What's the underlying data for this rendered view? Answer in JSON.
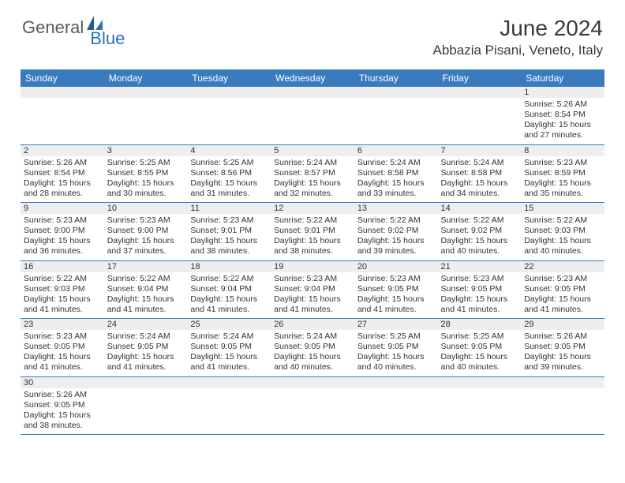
{
  "brand": {
    "part1": "General",
    "part2": "Blue"
  },
  "title": "June 2024",
  "location": "Abbazia Pisani, Veneto, Italy",
  "colors": {
    "header_bg": "#3a7bbf",
    "header_text": "#ffffff",
    "daynum_bg": "#eeeeee",
    "text": "#333333",
    "logo_gray": "#5a5a5a",
    "logo_blue": "#2d6fb3",
    "row_border": "#3a7bbf"
  },
  "day_headers": [
    "Sunday",
    "Monday",
    "Tuesday",
    "Wednesday",
    "Thursday",
    "Friday",
    "Saturday"
  ],
  "weeks": [
    [
      null,
      null,
      null,
      null,
      null,
      null,
      {
        "n": "1",
        "sr": "Sunrise: 5:26 AM",
        "ss": "Sunset: 8:54 PM",
        "d1": "Daylight: 15 hours",
        "d2": "and 27 minutes."
      }
    ],
    [
      {
        "n": "2",
        "sr": "Sunrise: 5:26 AM",
        "ss": "Sunset: 8:54 PM",
        "d1": "Daylight: 15 hours",
        "d2": "and 28 minutes."
      },
      {
        "n": "3",
        "sr": "Sunrise: 5:25 AM",
        "ss": "Sunset: 8:55 PM",
        "d1": "Daylight: 15 hours",
        "d2": "and 30 minutes."
      },
      {
        "n": "4",
        "sr": "Sunrise: 5:25 AM",
        "ss": "Sunset: 8:56 PM",
        "d1": "Daylight: 15 hours",
        "d2": "and 31 minutes."
      },
      {
        "n": "5",
        "sr": "Sunrise: 5:24 AM",
        "ss": "Sunset: 8:57 PM",
        "d1": "Daylight: 15 hours",
        "d2": "and 32 minutes."
      },
      {
        "n": "6",
        "sr": "Sunrise: 5:24 AM",
        "ss": "Sunset: 8:58 PM",
        "d1": "Daylight: 15 hours",
        "d2": "and 33 minutes."
      },
      {
        "n": "7",
        "sr": "Sunrise: 5:24 AM",
        "ss": "Sunset: 8:58 PM",
        "d1": "Daylight: 15 hours",
        "d2": "and 34 minutes."
      },
      {
        "n": "8",
        "sr": "Sunrise: 5:23 AM",
        "ss": "Sunset: 8:59 PM",
        "d1": "Daylight: 15 hours",
        "d2": "and 35 minutes."
      }
    ],
    [
      {
        "n": "9",
        "sr": "Sunrise: 5:23 AM",
        "ss": "Sunset: 9:00 PM",
        "d1": "Daylight: 15 hours",
        "d2": "and 36 minutes."
      },
      {
        "n": "10",
        "sr": "Sunrise: 5:23 AM",
        "ss": "Sunset: 9:00 PM",
        "d1": "Daylight: 15 hours",
        "d2": "and 37 minutes."
      },
      {
        "n": "11",
        "sr": "Sunrise: 5:23 AM",
        "ss": "Sunset: 9:01 PM",
        "d1": "Daylight: 15 hours",
        "d2": "and 38 minutes."
      },
      {
        "n": "12",
        "sr": "Sunrise: 5:22 AM",
        "ss": "Sunset: 9:01 PM",
        "d1": "Daylight: 15 hours",
        "d2": "and 38 minutes."
      },
      {
        "n": "13",
        "sr": "Sunrise: 5:22 AM",
        "ss": "Sunset: 9:02 PM",
        "d1": "Daylight: 15 hours",
        "d2": "and 39 minutes."
      },
      {
        "n": "14",
        "sr": "Sunrise: 5:22 AM",
        "ss": "Sunset: 9:02 PM",
        "d1": "Daylight: 15 hours",
        "d2": "and 40 minutes."
      },
      {
        "n": "15",
        "sr": "Sunrise: 5:22 AM",
        "ss": "Sunset: 9:03 PM",
        "d1": "Daylight: 15 hours",
        "d2": "and 40 minutes."
      }
    ],
    [
      {
        "n": "16",
        "sr": "Sunrise: 5:22 AM",
        "ss": "Sunset: 9:03 PM",
        "d1": "Daylight: 15 hours",
        "d2": "and 41 minutes."
      },
      {
        "n": "17",
        "sr": "Sunrise: 5:22 AM",
        "ss": "Sunset: 9:04 PM",
        "d1": "Daylight: 15 hours",
        "d2": "and 41 minutes."
      },
      {
        "n": "18",
        "sr": "Sunrise: 5:22 AM",
        "ss": "Sunset: 9:04 PM",
        "d1": "Daylight: 15 hours",
        "d2": "and 41 minutes."
      },
      {
        "n": "19",
        "sr": "Sunrise: 5:23 AM",
        "ss": "Sunset: 9:04 PM",
        "d1": "Daylight: 15 hours",
        "d2": "and 41 minutes."
      },
      {
        "n": "20",
        "sr": "Sunrise: 5:23 AM",
        "ss": "Sunset: 9:05 PM",
        "d1": "Daylight: 15 hours",
        "d2": "and 41 minutes."
      },
      {
        "n": "21",
        "sr": "Sunrise: 5:23 AM",
        "ss": "Sunset: 9:05 PM",
        "d1": "Daylight: 15 hours",
        "d2": "and 41 minutes."
      },
      {
        "n": "22",
        "sr": "Sunrise: 5:23 AM",
        "ss": "Sunset: 9:05 PM",
        "d1": "Daylight: 15 hours",
        "d2": "and 41 minutes."
      }
    ],
    [
      {
        "n": "23",
        "sr": "Sunrise: 5:23 AM",
        "ss": "Sunset: 9:05 PM",
        "d1": "Daylight: 15 hours",
        "d2": "and 41 minutes."
      },
      {
        "n": "24",
        "sr": "Sunrise: 5:24 AM",
        "ss": "Sunset: 9:05 PM",
        "d1": "Daylight: 15 hours",
        "d2": "and 41 minutes."
      },
      {
        "n": "25",
        "sr": "Sunrise: 5:24 AM",
        "ss": "Sunset: 9:05 PM",
        "d1": "Daylight: 15 hours",
        "d2": "and 41 minutes."
      },
      {
        "n": "26",
        "sr": "Sunrise: 5:24 AM",
        "ss": "Sunset: 9:05 PM",
        "d1": "Daylight: 15 hours",
        "d2": "and 40 minutes."
      },
      {
        "n": "27",
        "sr": "Sunrise: 5:25 AM",
        "ss": "Sunset: 9:05 PM",
        "d1": "Daylight: 15 hours",
        "d2": "and 40 minutes."
      },
      {
        "n": "28",
        "sr": "Sunrise: 5:25 AM",
        "ss": "Sunset: 9:05 PM",
        "d1": "Daylight: 15 hours",
        "d2": "and 40 minutes."
      },
      {
        "n": "29",
        "sr": "Sunrise: 5:26 AM",
        "ss": "Sunset: 9:05 PM",
        "d1": "Daylight: 15 hours",
        "d2": "and 39 minutes."
      }
    ],
    [
      {
        "n": "30",
        "sr": "Sunrise: 5:26 AM",
        "ss": "Sunset: 9:05 PM",
        "d1": "Daylight: 15 hours",
        "d2": "and 38 minutes."
      },
      null,
      null,
      null,
      null,
      null,
      null
    ]
  ]
}
